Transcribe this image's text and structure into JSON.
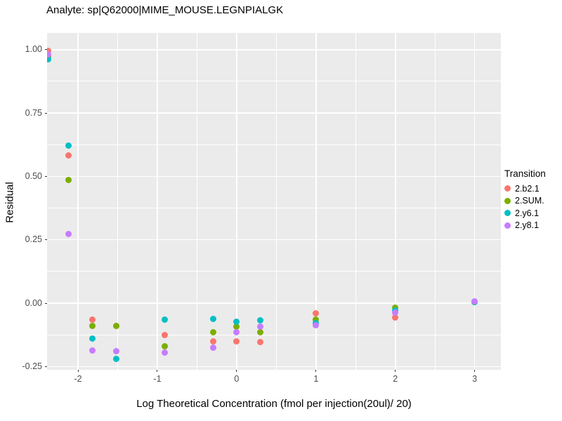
{
  "title": "Analyte: sp|Q62000|MIME_MOUSE.LEGNPIALGK",
  "chart_data": {
    "type": "scatter",
    "title": "Analyte: sp|Q62000|MIME_MOUSE.LEGNPIALGK",
    "xlabel": "Log Theoretical Concentration (fmol per injection(20ul)/ 20)",
    "ylabel": "Residual",
    "xlim": [
      -2.39,
      3.33
    ],
    "ylim": [
      -0.263,
      1.066
    ],
    "grid": true,
    "panel_bg": "#EBEBEB",
    "grid_color": "#FFFFFF",
    "x_ticks": {
      "values": [
        -2,
        -1,
        0,
        1,
        2,
        3
      ],
      "labels": [
        "-2",
        "-1",
        "0",
        "1",
        "2",
        "3"
      ]
    },
    "y_ticks": {
      "values": [
        1.0,
        0.75,
        0.5,
        0.25,
        0.0,
        -0.25
      ],
      "labels": [
        "1.00",
        "0.75",
        "0.50",
        "0.25",
        "0.00",
        "-0.25"
      ]
    },
    "x_minor": [
      -1.5,
      -0.5,
      0.5,
      1.5,
      2.5
    ],
    "y_minor": [
      0.875,
      0.625,
      0.375,
      0.125,
      -0.125
    ],
    "legend_title": "Transition",
    "legend_position": "right",
    "series": [
      {
        "name": "2.b2.1",
        "color": "#F8766D",
        "points": [
          [
            -2.38,
            0.995
          ],
          [
            -2.12,
            0.582
          ],
          [
            -1.82,
            -0.064
          ],
          [
            -1.52,
            -0.09
          ],
          [
            -0.91,
            -0.125
          ],
          [
            -0.3,
            -0.152
          ],
          [
            0.0,
            -0.152
          ],
          [
            0.3,
            -0.155
          ],
          [
            1.0,
            -0.039
          ],
          [
            2.0,
            -0.058
          ],
          [
            3.0,
            0.005
          ]
        ]
      },
      {
        "name": "2.SUM.",
        "color": "#7CAE00",
        "points": [
          [
            -2.38,
            0.972
          ],
          [
            -2.12,
            0.485
          ],
          [
            -1.82,
            -0.089
          ],
          [
            -1.52,
            -0.089
          ],
          [
            -0.91,
            -0.169
          ],
          [
            -0.3,
            -0.116
          ],
          [
            0.0,
            -0.094
          ],
          [
            0.3,
            -0.114
          ],
          [
            1.0,
            -0.064
          ],
          [
            2.0,
            -0.017
          ],
          [
            3.0,
            0.005
          ]
        ]
      },
      {
        "name": "2.y6.1",
        "color": "#00BFC4",
        "points": [
          [
            -2.38,
            0.962
          ],
          [
            -2.12,
            0.623
          ],
          [
            -1.82,
            -0.141
          ],
          [
            -1.52,
            -0.219
          ],
          [
            -0.91,
            -0.064
          ],
          [
            -0.3,
            -0.061
          ],
          [
            0.0,
            -0.072
          ],
          [
            0.3,
            -0.069
          ],
          [
            1.0,
            -0.08
          ],
          [
            2.0,
            -0.03
          ],
          [
            3.0,
            0.005
          ]
        ]
      },
      {
        "name": "2.y8.1",
        "color": "#C77CFF",
        "points": [
          [
            -2.38,
            0.982
          ],
          [
            -2.12,
            0.274
          ],
          [
            -1.82,
            -0.186
          ],
          [
            -1.52,
            -0.191
          ],
          [
            -0.91,
            -0.194
          ],
          [
            -0.3,
            -0.177
          ],
          [
            0.0,
            -0.114
          ],
          [
            0.3,
            -0.094
          ],
          [
            1.0,
            -0.086
          ],
          [
            2.0,
            -0.036
          ],
          [
            3.0,
            0.006
          ]
        ]
      }
    ]
  }
}
